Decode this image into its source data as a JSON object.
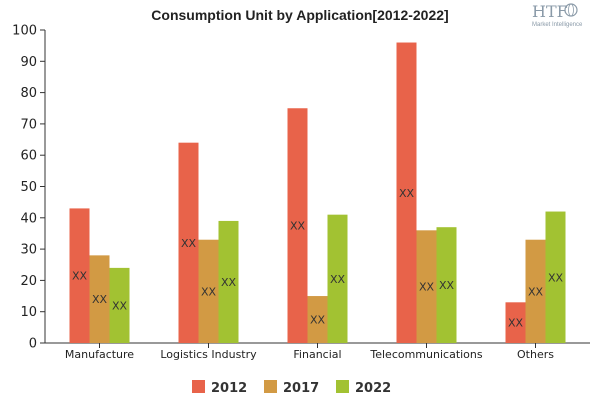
{
  "chart_data": {
    "type": "bar",
    "title": "Consumption Unit by  Application[2012-2022]",
    "xlabel": "",
    "ylabel": "",
    "categories": [
      "Manufacture",
      "Logistics Industry",
      "Financial",
      "Telecommunications",
      "Others"
    ],
    "series": [
      {
        "name": "2012",
        "color": "#e8634a",
        "values": [
          43,
          64,
          75,
          96,
          13
        ]
      },
      {
        "name": "2017",
        "color": "#d29a44",
        "values": [
          28,
          33,
          15,
          36,
          33
        ]
      },
      {
        "name": "2022",
        "color": "#a2c232",
        "values": [
          24,
          39,
          41,
          37,
          42
        ]
      }
    ],
    "data_label": "XX",
    "ylim": [
      0,
      100
    ],
    "yticks": [
      0,
      10,
      20,
      30,
      40,
      50,
      60,
      70,
      80,
      90,
      100
    ],
    "grid": false,
    "legend_position": "bottom"
  },
  "logo": {
    "text": "HTF",
    "subtext": "Market Intelligence",
    "icon": "globe-icon"
  }
}
